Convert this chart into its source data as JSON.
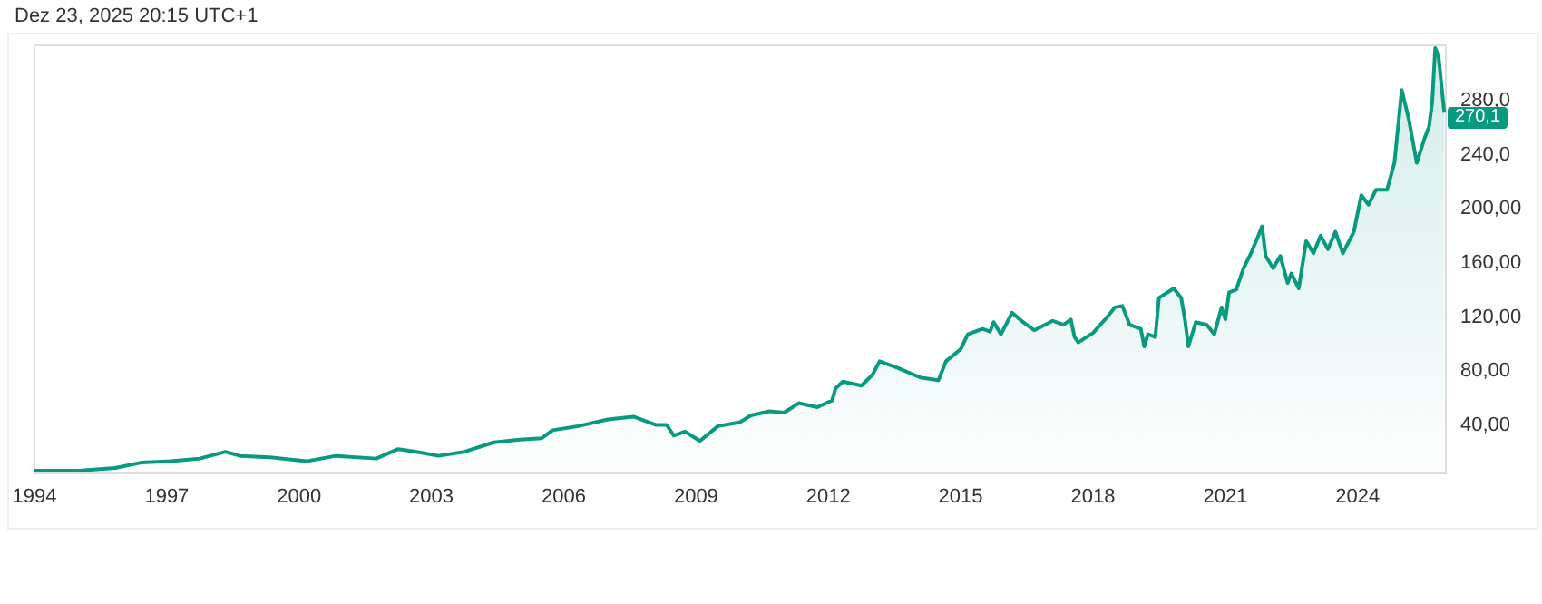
{
  "chart_data": {
    "type": "area",
    "annotations": [
      "Dez 23, 2025 20:15 UTC+1",
      "270,1"
    ],
    "x": [
      "1994-01",
      "1995-01",
      "1995-11",
      "1996-06",
      "1997-02",
      "1997-10",
      "1998-05",
      "1998-09",
      "1999-05",
      "2000-03",
      "2000-11",
      "2001-10",
      "2002-04",
      "2002-09",
      "2003-03",
      "2003-10",
      "2004-06",
      "2005-01",
      "2005-07",
      "2005-10",
      "2006-05",
      "2007-01",
      "2007-08",
      "2007-11",
      "2008-02",
      "2008-05",
      "2008-07",
      "2008-10",
      "2009-02",
      "2009-07",
      "2010-01",
      "2010-04",
      "2010-09",
      "2011-01",
      "2011-05",
      "2011-10",
      "2012-02",
      "2012-03",
      "2012-05",
      "2012-10",
      "2013-01",
      "2013-03",
      "2013-08",
      "2014-02",
      "2014-07",
      "2014-09",
      "2015-01",
      "2015-03",
      "2015-07",
      "2015-09",
      "2015-10",
      "2015-12",
      "2016-03",
      "2016-06",
      "2016-09",
      "2017-02",
      "2017-05",
      "2017-07",
      "2017-08",
      "2017-09",
      "2018-01",
      "2018-05",
      "2018-07",
      "2018-09",
      "2018-11",
      "2019-02",
      "2019-03",
      "2019-04",
      "2019-06",
      "2019-07",
      "2019-11",
      "2020-01",
      "2020-02",
      "2020-03",
      "2020-05",
      "2020-08",
      "2020-10",
      "2020-12",
      "2021-01",
      "2021-02",
      "2021-04",
      "2021-06",
      "2021-08",
      "2021-10",
      "2021-11",
      "2021-12",
      "2022-02",
      "2022-04",
      "2022-06",
      "2022-07",
      "2022-09",
      "2022-11",
      "2023-01",
      "2023-03",
      "2023-05",
      "2023-07",
      "2023-09",
      "2023-12",
      "2024-02",
      "2024-04",
      "2024-06",
      "2024-09",
      "2024-11",
      "2025-01",
      "2025-03",
      "2025-05-05",
      "2025-07-08",
      "2025-08-15",
      "2025-09-10",
      "2025-10-05",
      "2025-11-01",
      "2025-12-19"
    ],
    "series": [
      {
        "color": "#089981",
        "values": [
          5,
          5,
          7,
          11,
          12,
          14,
          19,
          16,
          15,
          12,
          16,
          14,
          21,
          19,
          16,
          19,
          26,
          28,
          29,
          35,
          38,
          43,
          45,
          42,
          39,
          39,
          31,
          34,
          27,
          38,
          41,
          46,
          49,
          48,
          55,
          52,
          57,
          66,
          71,
          68,
          76,
          86,
          81,
          74,
          72,
          86,
          95,
          106,
          110,
          108,
          115,
          106,
          122,
          115,
          109,
          116,
          113,
          117,
          104,
          100,
          107,
          119,
          126,
          127,
          113,
          110,
          97,
          106,
          104,
          133,
          140,
          133,
          117,
          97,
          115,
          113,
          106,
          126,
          117,
          137,
          139,
          155,
          166,
          179,
          186,
          164,
          155,
          164,
          144,
          151,
          140,
          175,
          166,
          179,
          169,
          182,
          166,
          182,
          209,
          202,
          213,
          213,
          233,
          287,
          265,
          233,
          251,
          260,
          278,
          318,
          312,
          270.1
        ]
      }
    ],
    "xlim": [
      "1994-01",
      "2026-01"
    ],
    "xticks": [
      {
        "value": "1994",
        "label": "1994"
      },
      {
        "value": "1997",
        "label": "1997"
      },
      {
        "value": "2000",
        "label": "2000"
      },
      {
        "value": "2003",
        "label": "2003"
      },
      {
        "value": "2006",
        "label": "2006"
      },
      {
        "value": "2009",
        "label": "2009"
      },
      {
        "value": "2012",
        "label": "2012"
      },
      {
        "value": "2015",
        "label": "2015"
      },
      {
        "value": "2018",
        "label": "2018"
      },
      {
        "value": "2021",
        "label": "2021"
      },
      {
        "value": "2024",
        "label": "2024"
      }
    ],
    "ylim": [
      3,
      320
    ],
    "yticks": [
      {
        "value": 40,
        "label": "40,00"
      },
      {
        "value": 80,
        "label": "80,00"
      },
      {
        "value": 120,
        "label": "120,00"
      },
      {
        "value": 160,
        "label": "160,00"
      },
      {
        "value": 200,
        "label": "200,00"
      },
      {
        "value": 240,
        "label": "240,0"
      },
      {
        "value": 280,
        "label": "280,0"
      }
    ],
    "grid": false,
    "legend": false
  }
}
